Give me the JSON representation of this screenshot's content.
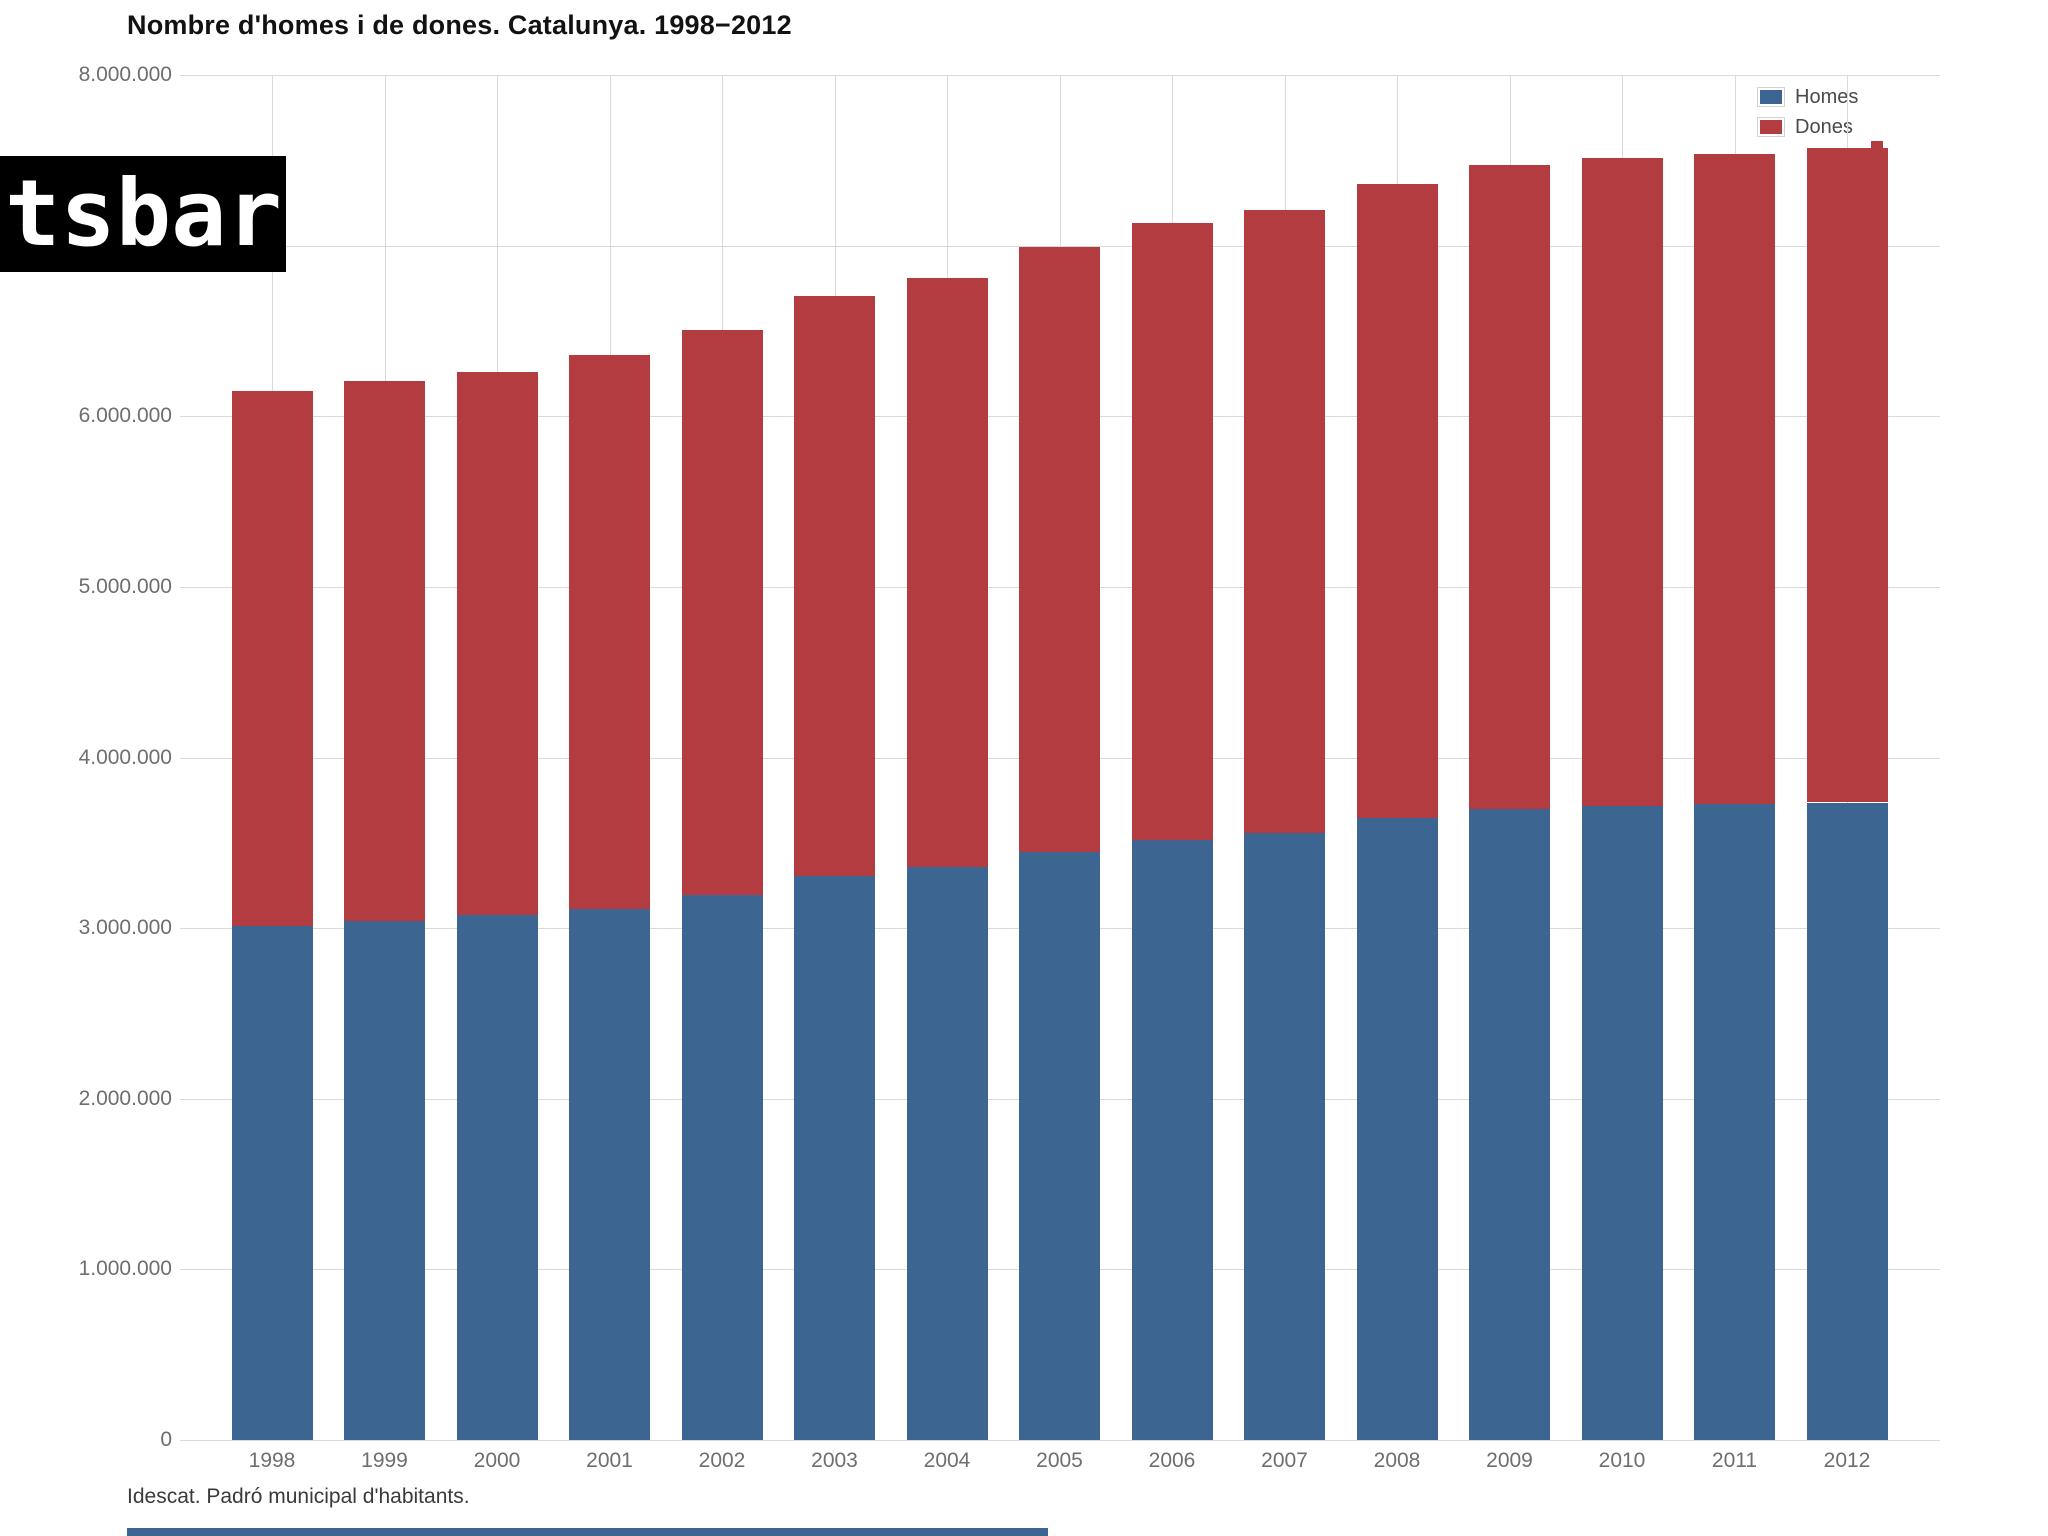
{
  "overlay": {
    "text": "tsbar"
  },
  "chart_data": {
    "type": "bar",
    "stacked": true,
    "title": "Nombre d'homes i de dones. Catalunya. 1998−2012",
    "source": "Idescat. Padró municipal d'habitants.",
    "categories": [
      "1998",
      "1999",
      "2000",
      "2001",
      "2002",
      "2003",
      "2004",
      "2005",
      "2006",
      "2007",
      "2008",
      "2009",
      "2010",
      "2011",
      "2012"
    ],
    "series": [
      {
        "name": "Homes",
        "color": "#3d6591",
        "values": [
          3015000,
          3042000,
          3077000,
          3114000,
          3196000,
          3305000,
          3361000,
          3446000,
          3518000,
          3560000,
          3646000,
          3700000,
          3714000,
          3725000,
          3736000
        ]
      },
      {
        "name": "Dones",
        "color": "#b23c40",
        "values": [
          3133000,
          3166000,
          3185000,
          3247000,
          3310000,
          3399000,
          3452000,
          3549000,
          3617000,
          3650000,
          3718000,
          3775000,
          3798000,
          3815000,
          3835000
        ]
      }
    ],
    "totals": [
      6148000,
      6208000,
      6262000,
      6361000,
      6506000,
      6704000,
      6813000,
      6995000,
      7135000,
      7210000,
      7364000,
      7475000,
      7512000,
      7540000,
      7571000
    ],
    "xlabel": "",
    "ylabel": "",
    "ylim": [
      0,
      8000000
    ],
    "grid": true,
    "legend_position": "top-right",
    "yticks": [
      {
        "value": 8000000,
        "label": "8.000.000"
      },
      {
        "value": 6000000,
        "label": "6.000.000"
      },
      {
        "value": 5000000,
        "label": "5.000.000"
      },
      {
        "value": 4000000,
        "label": "4.000.000"
      },
      {
        "value": 3000000,
        "label": "3.000.000"
      },
      {
        "value": 2000000,
        "label": "2.000.000"
      },
      {
        "value": 1000000,
        "label": "1.000.000"
      },
      {
        "value": 0,
        "label": "0"
      }
    ]
  }
}
